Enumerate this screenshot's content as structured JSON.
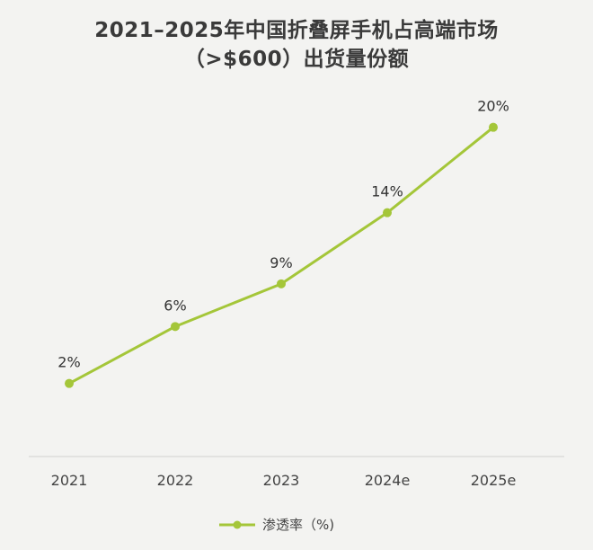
{
  "colors": {
    "series": "#a4c639",
    "axis": "#d0d0d0",
    "background": "#f3f3f1"
  },
  "chart_data": {
    "type": "line",
    "title": "2021–2025年中国折叠屏手机占高端市场",
    "subtitle": "（>$600）出货量份额",
    "categories": [
      "2021",
      "2022",
      "2023",
      "2024e",
      "2025e"
    ],
    "series": [
      {
        "name": "渗透率（%)",
        "values": [
          2,
          6,
          9,
          14,
          20
        ],
        "labels": [
          "2%",
          "6%",
          "9%",
          "14%",
          "20%"
        ]
      }
    ],
    "ylim": [
      -2,
      22
    ],
    "grid": false,
    "legend": "bottom-center",
    "xlabel": "",
    "ylabel": ""
  }
}
